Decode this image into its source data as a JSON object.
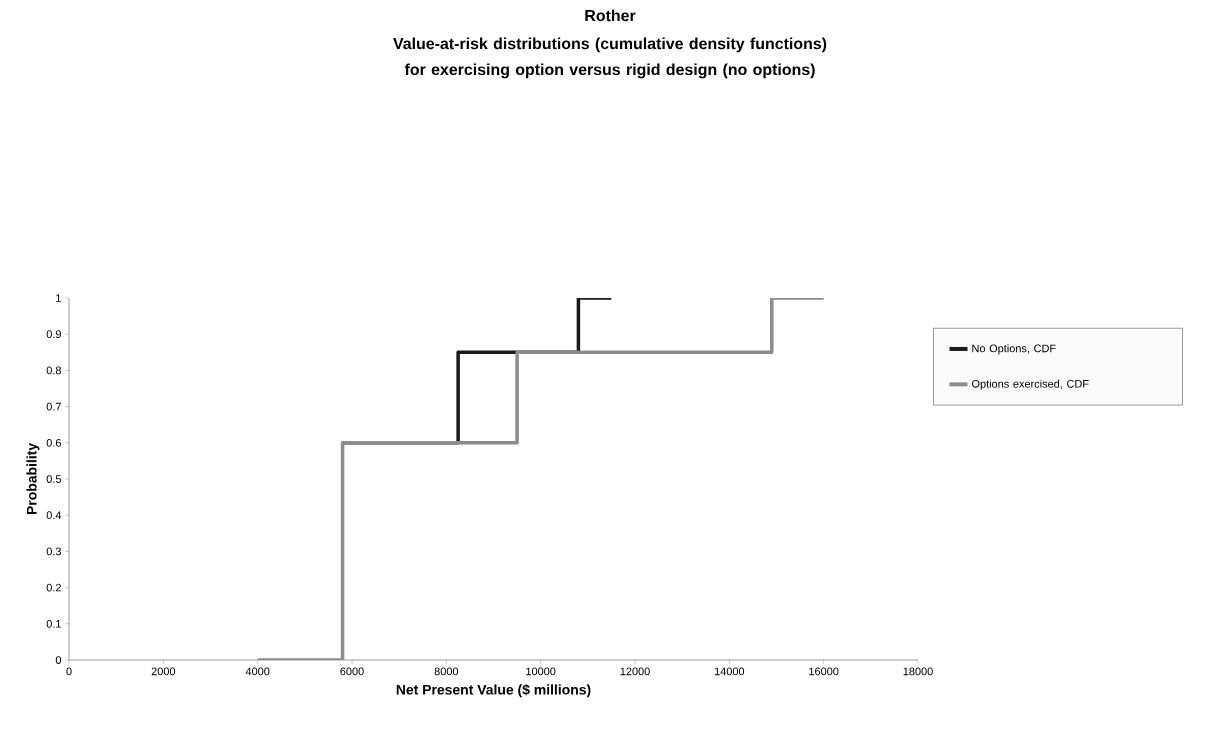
{
  "chart_data": {
    "type": "step",
    "title": "Rother",
    "subtitle": "Value-at-risk distributions (cumulative density functions) for exercising option versus rigid design (no options)",
    "xlabel": "Net Present Value ($ millions)",
    "ylabel": "Probability",
    "series": [
      {
        "name": "No Options, CDF",
        "color": "#1a1a1a",
        "x": [
          5800,
          8250,
          10800,
          11500
        ],
        "values": [
          0.6,
          0.85,
          1,
          1
        ]
      },
      {
        "name": "Options exercised, CDF",
        "color": "#8c8c8c",
        "x": [
          4000,
          5800,
          9500,
          14900,
          16000
        ],
        "values": [
          0,
          0.6,
          0.85,
          1,
          1
        ]
      }
    ],
    "xlim": [
      0,
      18000
    ],
    "ylim": [
      0,
      1
    ],
    "xticks": [
      0,
      2000,
      4000,
      6000,
      8000,
      10000,
      12000,
      14000,
      16000,
      18000
    ],
    "yticks": [
      0,
      0.1,
      0.2,
      0.3,
      0.4,
      0.5,
      0.6,
      0.7,
      0.8,
      0.9,
      1
    ],
    "grid": false,
    "legend": "right"
  }
}
